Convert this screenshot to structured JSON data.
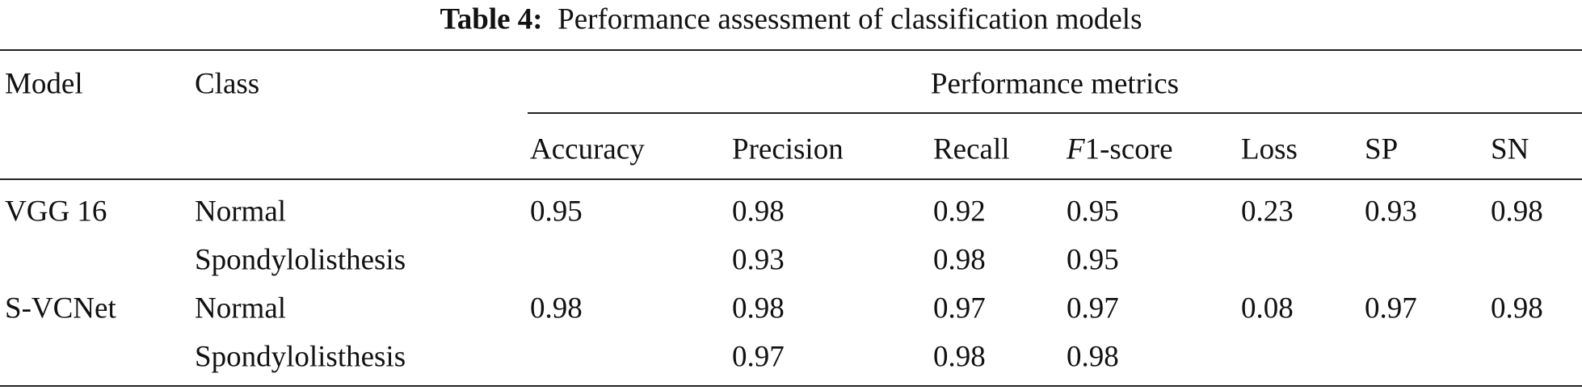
{
  "table": {
    "title": {
      "label": "Table 4:",
      "text": "Performance assessment of classification models"
    },
    "headers": {
      "model": "Model",
      "class": "Class",
      "group": "Performance metrics",
      "metrics": [
        "Accuracy",
        "Precision",
        "Recall",
        "F1-score",
        "Loss",
        "SP",
        "SN"
      ]
    },
    "rows": [
      {
        "model": "VGG 16",
        "class": "Normal",
        "accuracy": "0.95",
        "precision": "0.98",
        "recall": "0.92",
        "f1": "0.95",
        "loss": "0.23",
        "sp": "0.93",
        "sn": "0.98"
      },
      {
        "class": "Spondylolisthesis",
        "precision": "0.93",
        "recall": "0.98",
        "f1": "0.95"
      },
      {
        "model": "S-VCNet",
        "class": "Normal",
        "accuracy": "0.98",
        "precision": "0.98",
        "recall": "0.97",
        "f1": "0.97",
        "loss": "0.08",
        "sp": "0.97",
        "sn": "0.98"
      },
      {
        "class": "Spondylolisthesis",
        "precision": "0.97",
        "recall": "0.98",
        "f1": "0.98"
      }
    ]
  }
}
